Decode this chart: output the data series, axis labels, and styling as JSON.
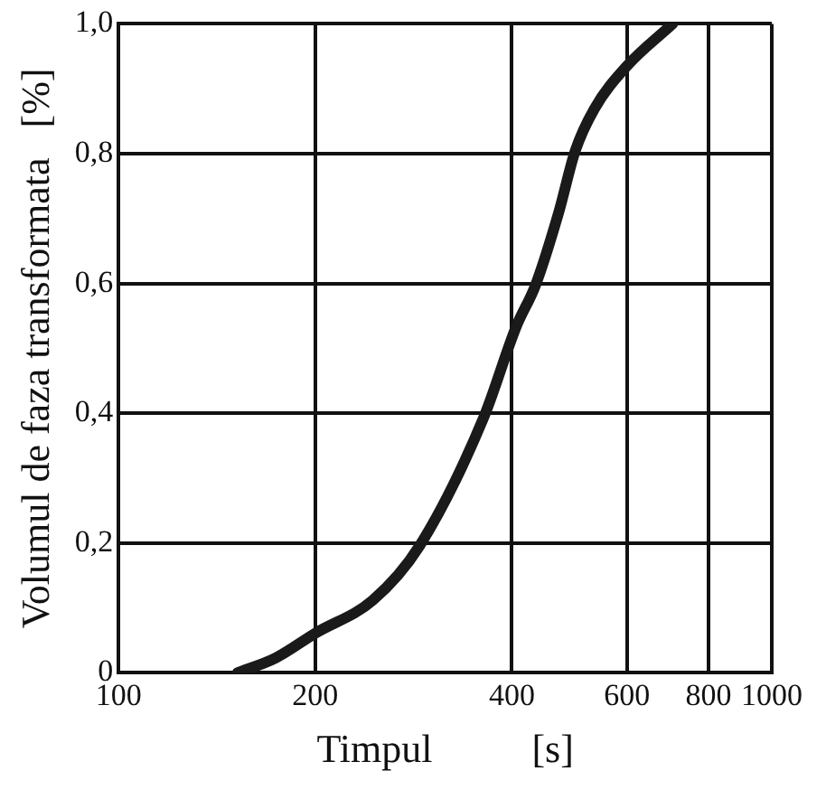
{
  "chart_data": {
    "type": "line",
    "xlabel": "Timpul          [s]",
    "ylabel": "Volumul de faza transformata   [%]",
    "x": [
      152,
      174,
      200,
      245,
      289,
      362,
      406,
      435,
      472,
      500,
      535,
      600,
      705
    ],
    "series": [
      {
        "color": "#1a1a1a",
        "values": [
          0,
          0.023,
          0.061,
          0.112,
          0.196,
          0.393,
          0.533,
          0.598,
          0.71,
          0.804,
          0.869,
          0.935,
          1.0
        ]
      }
    ],
    "xlim": [
      100,
      1000
    ],
    "xticks": [
      100,
      200,
      400,
      600,
      800,
      1000
    ],
    "ylim": [
      0,
      1
    ],
    "yticks": [
      {
        "value": 0,
        "label": "0"
      },
      {
        "value": 0.2,
        "label": "0,2"
      },
      {
        "value": 0.4,
        "label": "0,4"
      },
      {
        "value": 0.6,
        "label": "0,6"
      },
      {
        "value": 0.8,
        "label": "0,8"
      },
      {
        "value": 1,
        "label": "1,0"
      }
    ],
    "log": "x",
    "grid": true,
    "marker": "none",
    "line_style": "solid",
    "legend": false
  }
}
